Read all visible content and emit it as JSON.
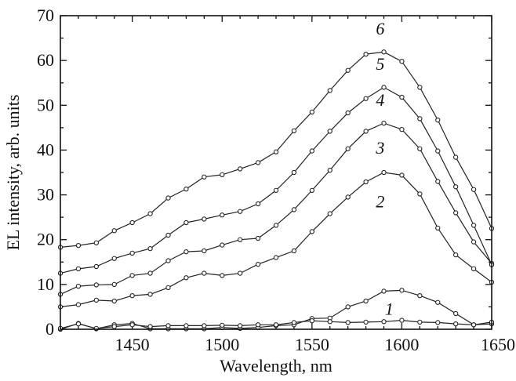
{
  "chart_data": {
    "type": "line",
    "xlabel": "Wavelength, nm",
    "ylabel": "EL intensity, arb. units",
    "xlim": [
      1410,
      1650
    ],
    "ylim": [
      0,
      70
    ],
    "xticks": [
      1450,
      1500,
      1550,
      1600,
      1650
    ],
    "yticks": [
      0,
      10,
      20,
      30,
      40,
      50,
      60,
      70
    ],
    "grid": false,
    "x": [
      1410,
      1420,
      1430,
      1440,
      1450,
      1460,
      1470,
      1480,
      1490,
      1500,
      1510,
      1520,
      1530,
      1540,
      1550,
      1560,
      1570,
      1580,
      1590,
      1600,
      1610,
      1620,
      1630,
      1640,
      1650
    ],
    "series": [
      {
        "name": "1",
        "values": [
          0.0,
          1.3,
          0.1,
          1.0,
          1.3,
          0.1,
          0.1,
          0.1,
          0.1,
          0.4,
          0.2,
          0.4,
          0.8,
          1.0,
          2.4,
          2.5,
          5.0,
          6.3,
          8.5,
          8.7,
          7.5,
          6.0,
          3.5,
          1.0,
          1.2
        ]
      },
      {
        "name": "2",
        "values": [
          5.0,
          5.5,
          6.5,
          6.3,
          7.5,
          7.8,
          9.3,
          11.5,
          12.5,
          12.0,
          12.5,
          14.5,
          16.0,
          17.5,
          21.8,
          25.8,
          29.5,
          32.9,
          35.0,
          34.4,
          30.2,
          22.6,
          16.6,
          13.5,
          10.5
        ]
      },
      {
        "name": "3",
        "values": [
          7.8,
          9.6,
          9.9,
          10.0,
          12.0,
          12.5,
          15.3,
          17.3,
          17.5,
          18.8,
          20.0,
          20.3,
          23.2,
          26.7,
          31.0,
          35.5,
          40.3,
          44.2,
          46.0,
          44.6,
          40.3,
          33.0,
          26.0,
          19.5,
          14.7
        ]
      },
      {
        "name": "4",
        "values": [
          12.5,
          13.5,
          14.0,
          15.8,
          17.0,
          18.0,
          21.0,
          23.8,
          24.6,
          25.5,
          26.3,
          28.0,
          31.0,
          35.0,
          39.8,
          44.2,
          48.3,
          51.5,
          54.0,
          51.8,
          47.0,
          39.8,
          31.8,
          23.2,
          14.4
        ]
      },
      {
        "name": "5",
        "values": [
          18.3,
          18.7,
          19.3,
          22.0,
          23.8,
          25.8,
          29.3,
          31.3,
          34.0,
          34.5,
          35.8,
          37.2,
          39.6,
          44.3,
          48.5,
          53.3,
          57.8,
          61.4,
          61.9,
          59.8,
          54.0,
          46.7,
          38.4,
          31.2,
          22.5
        ]
      },
      {
        "name": "6",
        "values": [
          0.2,
          1.2,
          0.2,
          0.6,
          1.0,
          0.6,
          0.8,
          0.8,
          0.8,
          0.9,
          0.8,
          1.0,
          1.0,
          1.5,
          1.9,
          1.7,
          1.5,
          1.6,
          1.7,
          2.0,
          1.6,
          1.5,
          1.2,
          1.0,
          1.6
        ]
      }
    ]
  }
}
